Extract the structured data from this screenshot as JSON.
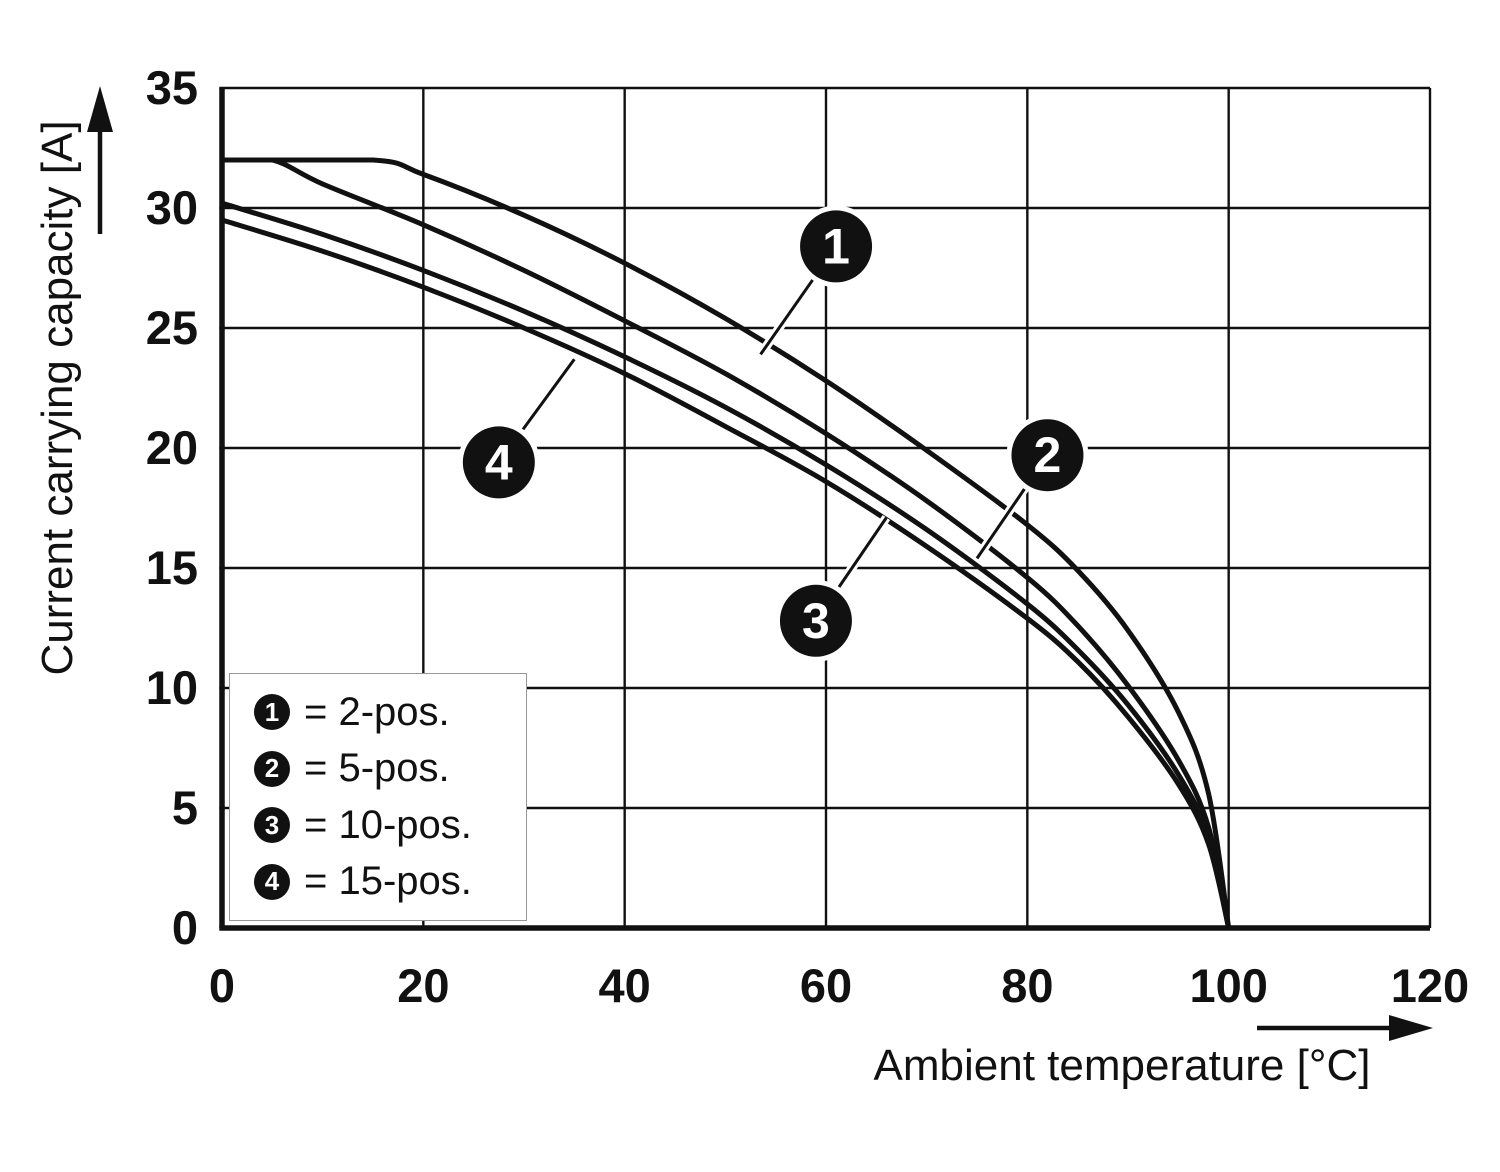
{
  "chart_data": {
    "type": "line",
    "title": "",
    "xlabel": "Ambient temperature [°C]",
    "ylabel": "Current carrying capacity [A]",
    "xlim": [
      0,
      120
    ],
    "ylim": [
      0,
      35
    ],
    "x_ticks": [
      0,
      20,
      40,
      60,
      80,
      100,
      120
    ],
    "y_ticks": [
      0,
      5,
      10,
      15,
      20,
      25,
      30,
      35
    ],
    "grid": true,
    "line_color": "#111111",
    "background": "#ffffff",
    "legend_position": "inside-lower-left",
    "series": [
      {
        "id": "1",
        "name": "2-pos.",
        "points": [
          [
            0,
            32
          ],
          [
            15,
            32
          ],
          [
            20,
            31.4
          ],
          [
            30,
            29.7
          ],
          [
            40,
            27.7
          ],
          [
            50,
            25.4
          ],
          [
            60,
            22.8
          ],
          [
            70,
            19.9
          ],
          [
            80,
            16.8
          ],
          [
            85,
            14.9
          ],
          [
            90,
            12.4
          ],
          [
            95,
            9.0
          ],
          [
            98,
            5.6
          ],
          [
            100,
            0
          ]
        ]
      },
      {
        "id": "2",
        "name": "5-pos.",
        "points": [
          [
            0,
            32
          ],
          [
            5,
            32
          ],
          [
            10,
            31.0
          ],
          [
            20,
            29.3
          ],
          [
            30,
            27.4
          ],
          [
            40,
            25.3
          ],
          [
            50,
            23.1
          ],
          [
            60,
            20.6
          ],
          [
            70,
            17.8
          ],
          [
            80,
            14.6
          ],
          [
            85,
            12.6
          ],
          [
            90,
            10.1
          ],
          [
            95,
            7.0
          ],
          [
            98,
            4.2
          ],
          [
            100,
            0
          ]
        ]
      },
      {
        "id": "3",
        "name": "10-pos.",
        "points": [
          [
            0,
            30.2
          ],
          [
            10,
            28.9
          ],
          [
            20,
            27.4
          ],
          [
            30,
            25.7
          ],
          [
            40,
            23.8
          ],
          [
            50,
            21.7
          ],
          [
            60,
            19.3
          ],
          [
            70,
            16.6
          ],
          [
            80,
            13.5
          ],
          [
            85,
            11.6
          ],
          [
            90,
            9.3
          ],
          [
            95,
            6.4
          ],
          [
            98,
            3.8
          ],
          [
            100,
            0
          ]
        ]
      },
      {
        "id": "4",
        "name": "15-pos.",
        "points": [
          [
            0,
            29.5
          ],
          [
            10,
            28.2
          ],
          [
            20,
            26.7
          ],
          [
            30,
            25.0
          ],
          [
            40,
            23.1
          ],
          [
            50,
            20.9
          ],
          [
            60,
            18.6
          ],
          [
            70,
            15.9
          ],
          [
            80,
            12.9
          ],
          [
            85,
            11.1
          ],
          [
            90,
            8.8
          ],
          [
            95,
            6.0
          ],
          [
            98,
            3.5
          ],
          [
            100,
            0
          ]
        ]
      }
    ],
    "callouts": [
      {
        "label": "1",
        "circle_at": [
          61,
          28.4
        ],
        "points_to": [
          53.5,
          23.9
        ]
      },
      {
        "label": "2",
        "circle_at": [
          82,
          19.7
        ],
        "points_to": [
          75,
          15.4
        ]
      },
      {
        "label": "3",
        "circle_at": [
          59,
          12.8
        ],
        "points_to": [
          66,
          17.1
        ]
      },
      {
        "label": "4",
        "circle_at": [
          27.5,
          19.4
        ],
        "points_to": [
          35,
          23.7
        ]
      }
    ],
    "legend": [
      {
        "num": "1",
        "label": "= 2-pos."
      },
      {
        "num": "2",
        "label": "= 5-pos."
      },
      {
        "num": "3",
        "label": "= 10-pos."
      },
      {
        "num": "4",
        "label": "= 15-pos."
      }
    ]
  }
}
